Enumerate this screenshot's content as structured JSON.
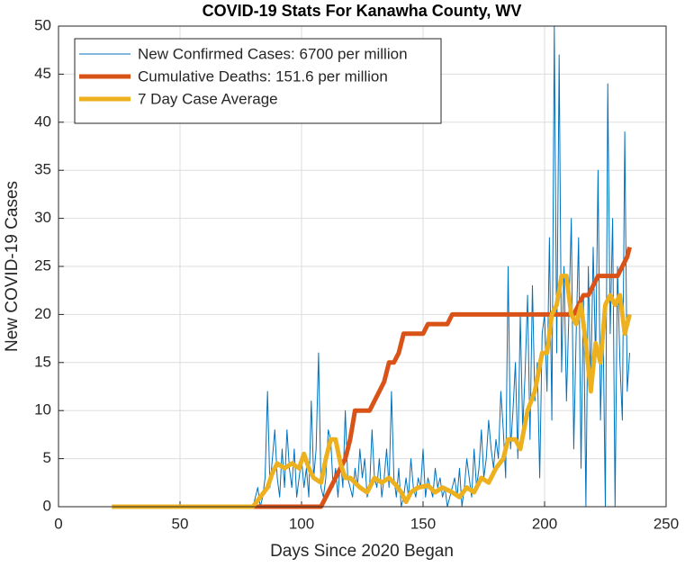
{
  "chart_data": {
    "type": "line",
    "title": "COVID-19 Stats For Kanawha County, WV",
    "x_label": "Days Since 2020 Began",
    "y_label": "New COVID-19 Cases",
    "xlim": [
      0,
      250
    ],
    "xticks": [
      0,
      50,
      100,
      150,
      200,
      250
    ],
    "ylim": [
      0,
      50
    ],
    "yticks": [
      0,
      5,
      10,
      15,
      20,
      25,
      30,
      35,
      40,
      45,
      50
    ],
    "grid": true,
    "legend": "top-left",
    "series": [
      {
        "name": "New Confirmed Cases: 6700 per million",
        "color": "#0072bd",
        "width": 1,
        "x": [
          22,
          80,
          81,
          82,
          83,
          84,
          85,
          86,
          87,
          88,
          89,
          90,
          91,
          92,
          93,
          94,
          95,
          96,
          97,
          98,
          99,
          100,
          101,
          102,
          103,
          104,
          105,
          106,
          107,
          108,
          109,
          110,
          111,
          112,
          113,
          114,
          115,
          116,
          117,
          118,
          119,
          120,
          121,
          122,
          123,
          124,
          125,
          126,
          127,
          128,
          129,
          130,
          131,
          132,
          133,
          134,
          135,
          136,
          137,
          138,
          139,
          140,
          141,
          142,
          143,
          144,
          145,
          146,
          147,
          148,
          149,
          150,
          151,
          152,
          153,
          154,
          155,
          156,
          157,
          158,
          159,
          160,
          161,
          162,
          163,
          164,
          165,
          166,
          167,
          168,
          169,
          170,
          171,
          172,
          173,
          174,
          175,
          176,
          177,
          178,
          179,
          180,
          181,
          182,
          183,
          184,
          185,
          186,
          187,
          188,
          189,
          190,
          191,
          192,
          193,
          194,
          195,
          196,
          197,
          198,
          199,
          200,
          201,
          202,
          203,
          204,
          205,
          206,
          207,
          208,
          209,
          210,
          211,
          212,
          213,
          214,
          215,
          216,
          217,
          218,
          219,
          220,
          221,
          222,
          223,
          224,
          225,
          226,
          227,
          228,
          229,
          230,
          231,
          232,
          233,
          234,
          235
        ],
        "values": [
          0,
          0,
          1,
          2,
          0,
          1,
          3,
          12,
          2,
          5,
          8,
          3,
          1,
          6,
          2,
          8,
          4,
          2,
          6,
          1,
          3,
          5,
          2,
          4,
          1,
          11,
          3,
          6,
          16,
          2,
          1,
          3,
          8,
          7,
          2,
          4,
          1,
          5,
          2,
          10,
          3,
          2,
          1,
          4,
          2,
          6,
          3,
          5,
          1,
          2,
          8,
          3,
          2,
          5,
          1,
          3,
          6,
          2,
          12,
          3,
          1,
          4,
          0,
          1,
          3,
          1,
          5,
          2,
          1,
          3,
          2,
          6,
          1,
          3,
          2,
          1,
          4,
          2,
          3,
          1,
          2,
          0,
          1,
          2,
          3,
          1,
          4,
          0,
          2,
          5,
          3,
          1,
          6,
          2,
          4,
          8,
          3,
          5,
          9,
          6,
          4,
          7,
          5,
          12,
          8,
          3,
          25,
          6,
          10,
          15,
          5,
          20,
          8,
          14,
          22,
          7,
          23,
          11,
          15,
          3,
          18,
          20,
          12,
          28,
          9,
          50,
          16,
          47,
          14,
          25,
          11,
          20,
          30,
          6,
          18,
          28,
          4,
          22,
          0,
          25,
          12,
          27,
          15,
          35,
          9,
          20,
          0,
          44,
          18,
          30,
          0,
          25,
          15,
          9,
          39,
          12,
          16
        ]
      },
      {
        "name": "Cumulative Deaths: 151.6 per million",
        "color": "#d95319",
        "width": 5,
        "x": [
          22,
          108,
          110,
          112,
          114,
          116,
          118,
          120,
          122,
          128,
          130,
          132,
          134,
          136,
          138,
          140,
          142,
          150,
          152,
          160,
          162,
          212,
          214,
          216,
          218,
          220,
          222,
          230,
          232,
          234,
          235
        ],
        "values": [
          0,
          0,
          1,
          2,
          3,
          4,
          5,
          7,
          10,
          10,
          11,
          12,
          13,
          15,
          15,
          16,
          18,
          18,
          19,
          19,
          20,
          20,
          21,
          22,
          22,
          23,
          24,
          24,
          25,
          26,
          27
        ]
      },
      {
        "name": "7 Day Case Average",
        "color": "#edb120",
        "width": 5,
        "x": [
          22,
          80,
          83,
          86,
          88,
          90,
          93,
          96,
          99,
          101,
          103,
          105,
          108,
          110,
          112,
          114,
          116,
          118,
          120,
          122,
          124,
          127,
          130,
          133,
          136,
          139,
          141,
          143,
          145,
          148,
          152,
          155,
          158,
          162,
          165,
          168,
          171,
          174,
          177,
          180,
          183,
          185,
          188,
          190,
          193,
          196,
          199,
          201,
          203,
          205,
          207,
          209,
          211,
          213,
          215,
          217,
          219,
          221,
          223,
          225,
          227,
          229,
          231,
          233,
          235
        ],
        "values": [
          0,
          0,
          1,
          2,
          3.5,
          4.5,
          4,
          4.5,
          4,
          5.5,
          4,
          3,
          2.5,
          5,
          7,
          7,
          4.5,
          3,
          3,
          2.5,
          2,
          1.5,
          3,
          2.5,
          3,
          2.2,
          1.5,
          0.5,
          1.5,
          2,
          2.2,
          1.5,
          2,
          1.5,
          1,
          2,
          1.5,
          3,
          2.5,
          4,
          5,
          7,
          7,
          6,
          10,
          12,
          16,
          16,
          20,
          21,
          24,
          24,
          20,
          19,
          21,
          17,
          12,
          17,
          15,
          21,
          22,
          21,
          22,
          18,
          20
        ]
      }
    ]
  }
}
